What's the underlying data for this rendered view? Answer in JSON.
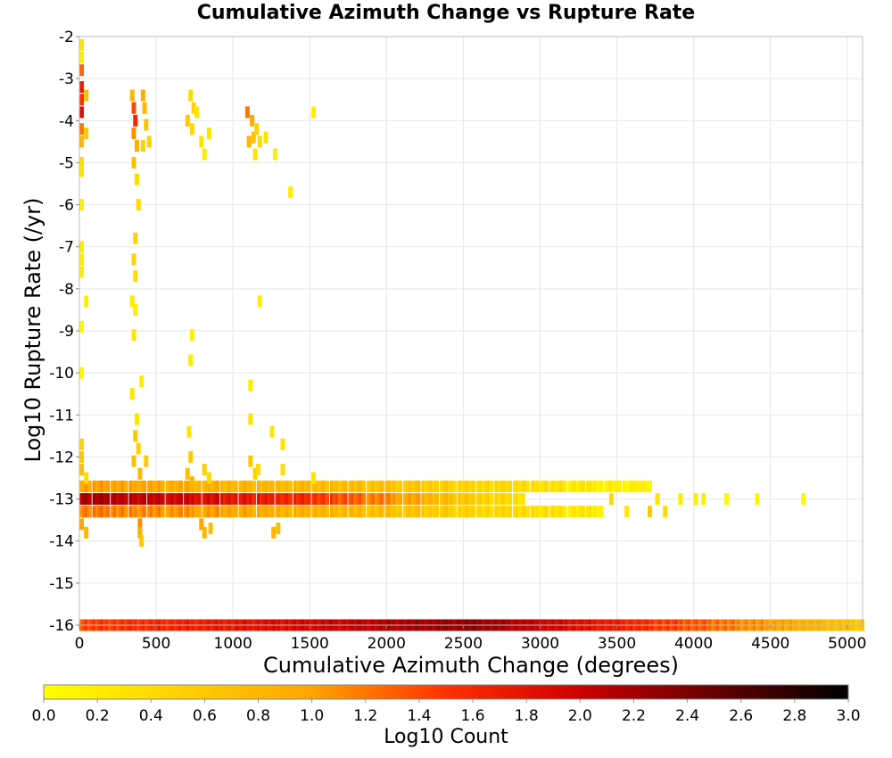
{
  "chart_data": {
    "type": "heatmap",
    "title": "Cumulative Azimuth Change vs Rupture Rate",
    "xlabel": "Cumulative Azimuth Change (degrees)",
    "ylabel": "Log10 Rupture Rate (/yr)",
    "xlim": [
      0,
      5100
    ],
    "ylim": [
      -16,
      -2
    ],
    "xticks": [
      0,
      500,
      1000,
      1500,
      2000,
      2500,
      3000,
      3500,
      4000,
      4500,
      5000
    ],
    "yticks": [
      -2,
      -3,
      -4,
      -5,
      -6,
      -7,
      -8,
      -9,
      -10,
      -11,
      -12,
      -13,
      -14,
      -15,
      -16
    ],
    "grid": true,
    "colorbar": {
      "label": "Log10 Count",
      "range": [
        0.0,
        3.0
      ],
      "ticks": [
        "0.0",
        "0.2",
        "0.4",
        "0.6",
        "0.8",
        "1.0",
        "1.2",
        "1.4",
        "1.6",
        "1.8",
        "2.0",
        "2.2",
        "2.4",
        "2.6",
        "2.8",
        "3.0"
      ],
      "colors": [
        "#ffff00",
        "#ffa500",
        "#ff0000",
        "#000000"
      ],
      "placement": "bottom"
    },
    "row_bands": [
      {
        "y": -16.0,
        "x": [
          0,
          5100
        ],
        "v": [
          1.4,
          2.3,
          0.6
        ]
      },
      {
        "y": -13.0,
        "x": [
          0,
          2900
        ],
        "v": [
          2.2,
          1.6,
          0.3
        ]
      },
      {
        "y": -12.7,
        "x": [
          0,
          3700
        ],
        "v": [
          1.0,
          0.7,
          0.1
        ]
      },
      {
        "y": -13.3,
        "x": [
          0,
          3400
        ],
        "v": [
          1.2,
          0.8,
          0.2
        ]
      }
    ],
    "cells": [
      [
        0,
        -2.2,
        0.3
      ],
      [
        0,
        -2.5,
        0.2
      ],
      [
        0,
        -2.8,
        1.3
      ],
      [
        0,
        -3.2,
        1.7
      ],
      [
        0,
        -3.5,
        1.5
      ],
      [
        0,
        -3.8,
        1.8
      ],
      [
        0,
        -4.2,
        1.2
      ],
      [
        0,
        -4.5,
        0.8
      ],
      [
        0,
        -5.0,
        0.4
      ],
      [
        0,
        -5.2,
        0.3
      ],
      [
        0,
        -6.0,
        0.2
      ],
      [
        0,
        -7.0,
        0.2
      ],
      [
        0,
        -7.3,
        0.2
      ],
      [
        0,
        -7.6,
        0.2
      ],
      [
        0,
        -8.9,
        0.1
      ],
      [
        0,
        -10.0,
        0.1
      ],
      [
        0,
        -11.7,
        0.5
      ],
      [
        0,
        -12.0,
        0.6
      ],
      [
        0,
        -12.3,
        0.7
      ],
      [
        0,
        -13.6,
        1.0
      ],
      [
        30,
        -3.4,
        0.7
      ],
      [
        30,
        -4.3,
        0.6
      ],
      [
        30,
        -8.3,
        0.2
      ],
      [
        30,
        -12.5,
        0.4
      ],
      [
        30,
        -13.8,
        0.8
      ],
      [
        330,
        -3.4,
        0.8
      ],
      [
        340,
        -3.7,
        1.4
      ],
      [
        350,
        -4.0,
        1.6
      ],
      [
        340,
        -4.3,
        1.1
      ],
      [
        360,
        -4.6,
        0.9
      ],
      [
        340,
        -5.0,
        0.7
      ],
      [
        360,
        -5.4,
        0.4
      ],
      [
        370,
        -6.0,
        0.4
      ],
      [
        350,
        -6.8,
        0.5
      ],
      [
        340,
        -7.3,
        0.5
      ],
      [
        350,
        -7.7,
        0.4
      ],
      [
        330,
        -8.3,
        0.2
      ],
      [
        350,
        -8.5,
        0.2
      ],
      [
        340,
        -9.1,
        0.3
      ],
      [
        330,
        -10.5,
        0.3
      ],
      [
        390,
        -10.2,
        0.2
      ],
      [
        360,
        -11.1,
        0.3
      ],
      [
        350,
        -11.5,
        0.6
      ],
      [
        370,
        -11.8,
        0.5
      ],
      [
        340,
        -12.1,
        0.7
      ],
      [
        380,
        -12.4,
        0.8
      ],
      [
        380,
        -13.6,
        1.1
      ],
      [
        380,
        -13.8,
        0.9
      ],
      [
        390,
        -14.0,
        0.6
      ],
      [
        400,
        -3.4,
        0.9
      ],
      [
        410,
        -3.7,
        0.8
      ],
      [
        420,
        -4.1,
        0.7
      ],
      [
        400,
        -4.6,
        0.5
      ],
      [
        440,
        -4.5,
        0.5
      ],
      [
        420,
        -12.1,
        0.6
      ],
      [
        710,
        -3.4,
        0.4
      ],
      [
        730,
        -3.7,
        0.5
      ],
      [
        690,
        -4.0,
        0.6
      ],
      [
        720,
        -4.2,
        0.4
      ],
      [
        750,
        -3.8,
        0.3
      ],
      [
        780,
        -4.5,
        0.3
      ],
      [
        800,
        -4.8,
        0.2
      ],
      [
        830,
        -4.3,
        0.3
      ],
      [
        720,
        -9.1,
        0.2
      ],
      [
        710,
        -9.7,
        0.2
      ],
      [
        700,
        -11.4,
        0.3
      ],
      [
        710,
        -12.0,
        0.6
      ],
      [
        690,
        -12.4,
        0.7
      ],
      [
        720,
        -12.6,
        0.8
      ],
      [
        800,
        -12.3,
        0.5
      ],
      [
        830,
        -12.5,
        0.4
      ],
      [
        780,
        -13.6,
        1.0
      ],
      [
        800,
        -13.8,
        0.8
      ],
      [
        840,
        -13.7,
        0.7
      ],
      [
        1080,
        -3.8,
        1.2
      ],
      [
        1110,
        -4.0,
        0.9
      ],
      [
        1120,
        -4.4,
        0.7
      ],
      [
        1090,
        -4.5,
        0.8
      ],
      [
        1140,
        -4.2,
        0.5
      ],
      [
        1160,
        -4.5,
        0.4
      ],
      [
        1130,
        -4.8,
        0.3
      ],
      [
        1200,
        -4.4,
        0.3
      ],
      [
        1260,
        -4.8,
        0.2
      ],
      [
        1160,
        -8.3,
        0.2
      ],
      [
        1100,
        -10.3,
        0.2
      ],
      [
        1100,
        -11.1,
        0.3
      ],
      [
        1100,
        -12.1,
        0.6
      ],
      [
        1130,
        -12.4,
        0.5
      ],
      [
        1150,
        -12.3,
        0.4
      ],
      [
        1240,
        -11.4,
        0.3
      ],
      [
        1310,
        -11.7,
        0.3
      ],
      [
        1310,
        -12.3,
        0.4
      ],
      [
        1250,
        -13.8,
        0.8
      ],
      [
        1280,
        -13.7,
        0.7
      ],
      [
        1360,
        -5.7,
        0.2
      ],
      [
        1510,
        -3.8,
        0.2
      ],
      [
        1510,
        -12.5,
        0.3
      ],
      [
        3700,
        -13.3,
        0.6
      ],
      [
        3750,
        -13.0,
        0.3
      ],
      [
        3800,
        -13.3,
        0.4
      ],
      [
        3900,
        -13.0,
        0.2
      ],
      [
        4000,
        -13.0,
        0.2
      ],
      [
        4050,
        -13.0,
        0.2
      ],
      [
        4200,
        -13.0,
        0.1
      ],
      [
        4400,
        -13.0,
        0.1
      ],
      [
        4700,
        -13.0,
        0.1
      ],
      [
        3600,
        -12.7,
        0.2
      ],
      [
        3500,
        -12.7,
        0.2
      ],
      [
        3450,
        -13.0,
        0.4
      ],
      [
        3550,
        -13.3,
        0.3
      ],
      [
        3650,
        -12.7,
        0.2
      ],
      [
        3700,
        -12.7,
        0.1
      ]
    ]
  }
}
